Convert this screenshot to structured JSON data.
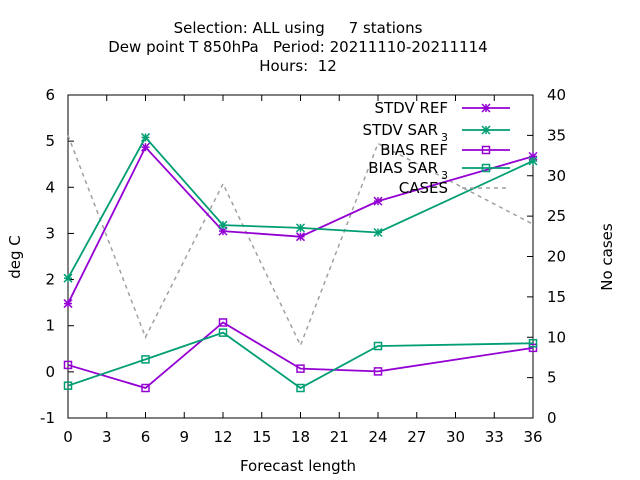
{
  "chart_data": {
    "type": "line",
    "title_lines": [
      "Selection: ALL using     7 stations",
      "Dew point T 850hPa   Period: 20211110-20211114",
      "Hours:  12"
    ],
    "xlabel": "Forecast length",
    "ylabel": "deg C",
    "y2label": "No cases",
    "xlim": [
      0,
      36
    ],
    "ylim": [
      -1,
      6
    ],
    "y2lim": [
      0,
      40
    ],
    "xticks": [
      0,
      3,
      6,
      9,
      12,
      15,
      18,
      21,
      24,
      27,
      30,
      33,
      36
    ],
    "yticks": [
      -1,
      0,
      1,
      2,
      3,
      4,
      5,
      6
    ],
    "y2ticks": [
      0,
      5,
      10,
      15,
      20,
      25,
      30,
      35,
      40
    ],
    "grid": false,
    "legend_position": "top-right",
    "x": [
      0,
      6,
      12,
      18,
      24,
      36
    ],
    "series": [
      {
        "name": "STDV REF",
        "sub": "",
        "axis": "y1",
        "color": "#9400d3",
        "marker": "cross",
        "values": [
          1.48,
          4.87,
          3.05,
          2.93,
          3.7,
          4.67
        ]
      },
      {
        "name": "STDV SAR",
        "sub": "3",
        "axis": "y1",
        "color": "#009e73",
        "marker": "cross",
        "values": [
          2.03,
          5.08,
          3.18,
          3.12,
          3.02,
          4.57
        ]
      },
      {
        "name": "BIAS REF",
        "sub": "",
        "axis": "y1",
        "color": "#9400d3",
        "marker": "square",
        "values": [
          0.15,
          -0.35,
          1.07,
          0.07,
          0.01,
          0.52
        ]
      },
      {
        "name": "BIAS SAR",
        "sub": "3",
        "axis": "y1",
        "color": "#009e73",
        "marker": "square",
        "values": [
          -0.3,
          0.27,
          0.85,
          -0.35,
          0.56,
          0.62
        ]
      },
      {
        "name": "CASES",
        "sub": "",
        "axis": "y2",
        "color": "#a0a0a0",
        "marker": "none",
        "dashed": true,
        "values": [
          35,
          10,
          29,
          9,
          34,
          24
        ]
      }
    ]
  }
}
